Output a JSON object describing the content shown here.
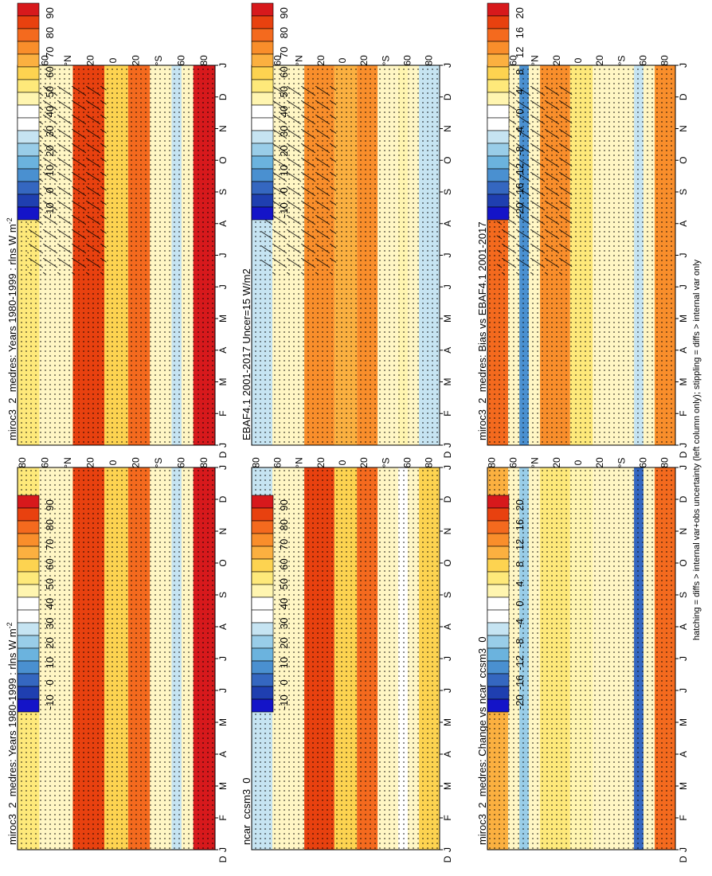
{
  "figure": {
    "footer": "hatching = diffs > internal var+obs uncertainty (left column only); stippling = diffs > internal var only",
    "orientation": "rotated-90-counterclockwise"
  },
  "colorbars": {
    "absolute": {
      "labels": [
        "90",
        "80",
        "70",
        "60",
        "50",
        "40",
        "30",
        "20",
        "10",
        "0",
        "-10"
      ],
      "colors": [
        "#d7191c",
        "#e8410f",
        "#f46a1e",
        "#f98e2b",
        "#fbb040",
        "#fdd350",
        "#fee97a",
        "#fff5b0",
        "#ffffff",
        "#ffffff",
        "#c6e4f2",
        "#99cde8",
        "#6bb3de",
        "#4a90d0",
        "#3567c0",
        "#1f3fb0",
        "#1414c8"
      ]
    },
    "difference": {
      "labels": [
        "20",
        "16",
        "12",
        "8",
        "4",
        "0",
        "-4",
        "-8",
        "-12",
        "-16",
        "-20"
      ],
      "colors": [
        "#d7191c",
        "#e8410f",
        "#f46a1e",
        "#f98e2b",
        "#fbb040",
        "#fdd350",
        "#fee97a",
        "#fff5b0",
        "#ffffff",
        "#ffffff",
        "#c6e4f2",
        "#99cde8",
        "#6bb3de",
        "#4a90d0",
        "#3567c0",
        "#1f3fb0",
        "#1414c8"
      ]
    }
  },
  "chart_data": [
    {
      "type": "heatmap",
      "panel": "left-top",
      "title": "miroc3_2_medres: Years 1980-1999 : rlns W m",
      "title_sup": "-2",
      "x": [
        "J",
        "F",
        "M",
        "A",
        "M",
        "J",
        "J",
        "A",
        "S",
        "O",
        "N",
        "D",
        "J"
      ],
      "y_labels": [
        "80",
        "60",
        "°N",
        "20",
        "0",
        "20",
        "°S",
        "60",
        "80"
      ],
      "colorbar": "absolute",
      "bands": [
        {
          "lat": "90N-70N",
          "value": 55
        },
        {
          "lat": "40N-10N",
          "value": 85
        },
        {
          "lat": "10N-10S",
          "value": 60
        },
        {
          "lat": "10S-30S",
          "value": 80
        },
        {
          "lat": "50S-60S",
          "value": 30
        },
        {
          "lat": "70S-90S",
          "value": 90
        }
      ],
      "hatching": true,
      "stippling": true
    },
    {
      "type": "heatmap",
      "panel": "right-top",
      "title": "miroc3_2_medres: Years 1980-1999 : rlns W m",
      "title_sup": "-2",
      "x": [
        "J",
        "F",
        "M",
        "A",
        "M",
        "J",
        "J",
        "A",
        "S",
        "O",
        "N",
        "D",
        "J"
      ],
      "y_labels": [
        "80",
        "60",
        "°N",
        "20",
        "0",
        "20",
        "°S",
        "60",
        "80"
      ],
      "colorbar": "absolute",
      "bands": [
        {
          "lat": "90N-70N",
          "value": 55
        },
        {
          "lat": "40N-10N",
          "value": 85
        },
        {
          "lat": "10N-10S",
          "value": 60
        },
        {
          "lat": "10S-30S",
          "value": 80
        },
        {
          "lat": "50S-60S",
          "value": 30
        },
        {
          "lat": "70S-90S",
          "value": 90
        }
      ],
      "hatching": false,
      "stippling": true
    },
    {
      "type": "heatmap",
      "panel": "left-middle",
      "title": "EBAF4.1 2001-2017 Uncer=15 W/m2",
      "x": [
        "J",
        "F",
        "M",
        "A",
        "M",
        "J",
        "J",
        "A",
        "S",
        "O",
        "N",
        "D",
        "J"
      ],
      "y_labels": [
        "80",
        "60",
        "°N",
        "20",
        "0",
        "20",
        "°S",
        "60",
        "80"
      ],
      "colorbar": "absolute",
      "bands": [
        {
          "lat": "90N-70N",
          "value": 30
        },
        {
          "lat": "40N-10N",
          "value": 75
        },
        {
          "lat": "10N-10S",
          "value": 65
        },
        {
          "lat": "10S-30S",
          "value": 75
        },
        {
          "lat": "50S-60S",
          "value": 45
        },
        {
          "lat": "70S-90S",
          "value": 25
        }
      ],
      "hatching": true,
      "stippling": true
    },
    {
      "type": "heatmap",
      "panel": "right-middle",
      "title": "ncar_ccsm3_0",
      "x": [
        "J",
        "F",
        "M",
        "A",
        "M",
        "J",
        "J",
        "A",
        "S",
        "O",
        "N",
        "D",
        "J"
      ],
      "y_labels": [
        "80",
        "60",
        "°N",
        "20",
        "0",
        "20",
        "°S",
        "60",
        "80"
      ],
      "colorbar": "absolute",
      "bands": [
        {
          "lat": "90N-70N",
          "value": 30
        },
        {
          "lat": "40N-10N",
          "value": 85
        },
        {
          "lat": "10N-10S",
          "value": 60
        },
        {
          "lat": "10S-30S",
          "value": 80
        },
        {
          "lat": "50S-60S",
          "value": 35
        },
        {
          "lat": "70S-90S",
          "value": 60
        }
      ],
      "hatching": false,
      "stippling": true
    },
    {
      "type": "heatmap",
      "panel": "left-bottom",
      "title": "miroc3_2_medres: Bias vs EBAF4.1 2001-2017",
      "x": [
        "J",
        "F",
        "M",
        "A",
        "M",
        "J",
        "J",
        "A",
        "S",
        "O",
        "N",
        "D",
        "J"
      ],
      "y_labels": [
        "80",
        "60",
        "°N",
        "20",
        "0",
        "20",
        "°S",
        "60",
        "80"
      ],
      "colorbar": "difference",
      "bands": [
        {
          "lat": "90N-70N",
          "value": 16
        },
        {
          "lat": "60N-50N",
          "value": -12
        },
        {
          "lat": "40N-10N",
          "value": 14
        },
        {
          "lat": "10N-10S",
          "value": 4
        },
        {
          "lat": "50S-60S",
          "value": -6
        },
        {
          "lat": "70S-90S",
          "value": 12
        }
      ],
      "hatching": true,
      "stippling": true
    },
    {
      "type": "heatmap",
      "panel": "right-bottom",
      "title": "miroc3_2_medres: Change vs ncar_ccsm3_0",
      "x": [
        "J",
        "F",
        "M",
        "A",
        "M",
        "J",
        "J",
        "A",
        "S",
        "O",
        "N",
        "D",
        "J"
      ],
      "y_labels": [
        "80",
        "60",
        "°N",
        "20",
        "0",
        "20",
        "°S",
        "60",
        "80"
      ],
      "colorbar": "difference",
      "bands": [
        {
          "lat": "90N-70N",
          "value": 10
        },
        {
          "lat": "60N-50N",
          "value": -8
        },
        {
          "lat": "40N-10N",
          "value": 4
        },
        {
          "lat": "10N-10S",
          "value": 2
        },
        {
          "lat": "50S-60S",
          "value": -16
        },
        {
          "lat": "70S-90S",
          "value": 16
        }
      ],
      "hatching": false,
      "stippling": true
    }
  ]
}
